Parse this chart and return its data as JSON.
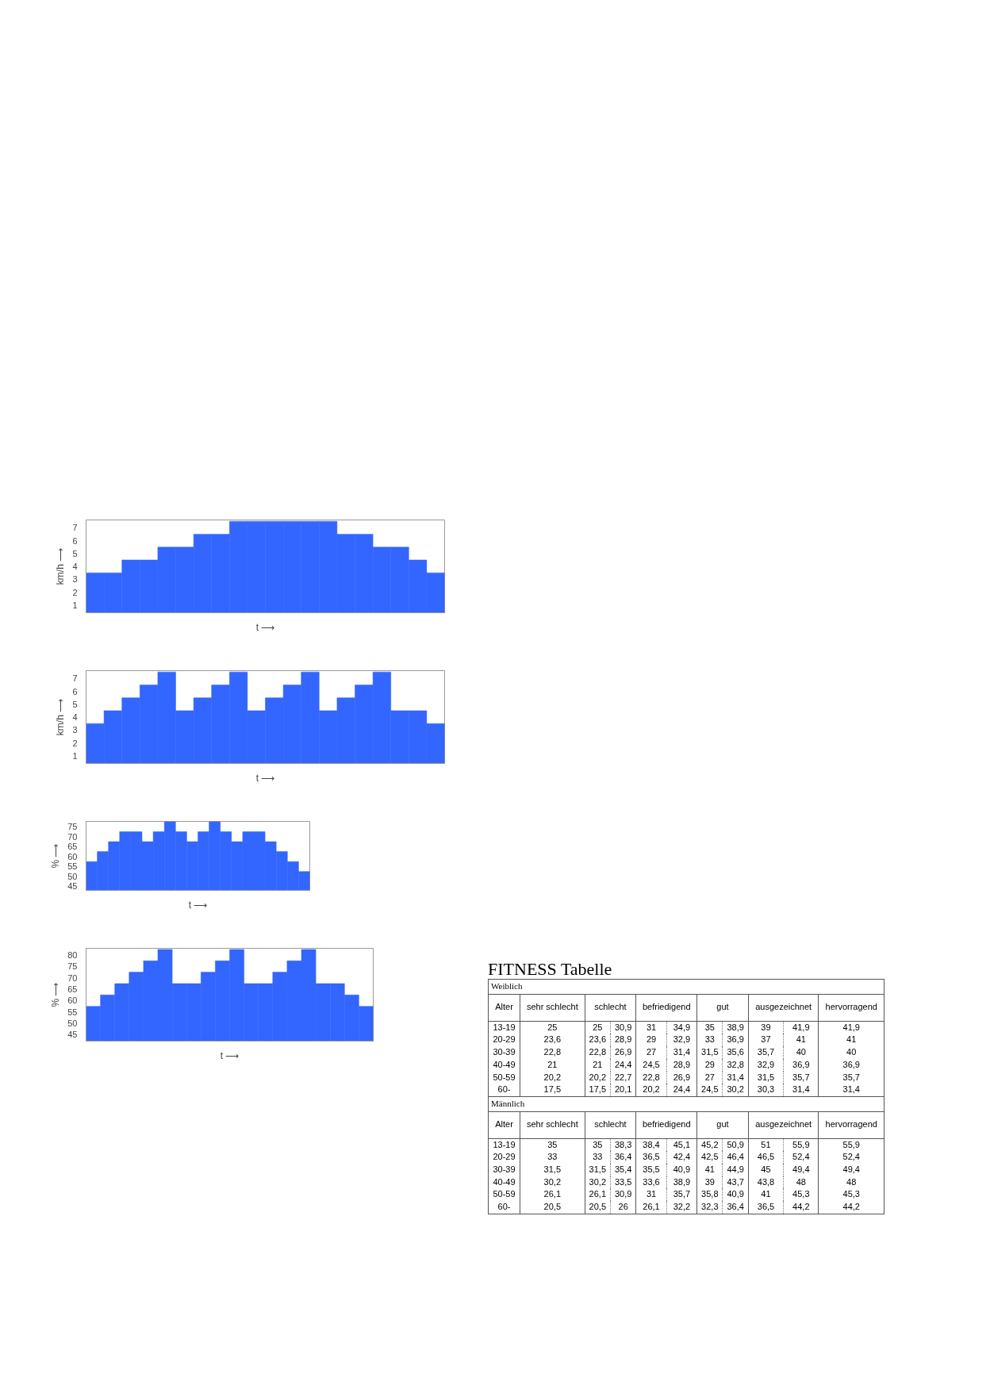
{
  "chart_data": [
    {
      "type": "bar",
      "ylabel": "km/h ⟶",
      "xlabel": "t ⟶",
      "categories": [
        null,
        null,
        null,
        null,
        null,
        null,
        null,
        null,
        null,
        null,
        null,
        null,
        null,
        null,
        null,
        null,
        null,
        null,
        null,
        null
      ],
      "values": [
        3.5,
        3.5,
        4.5,
        4.5,
        5.5,
        5.5,
        6.5,
        6.5,
        7.5,
        7.5,
        7.5,
        7.5,
        7.5,
        7.5,
        6.5,
        6.5,
        5.5,
        5.5,
        4.5,
        3.5
      ],
      "color": "#3366ff",
      "ylim": [
        0.4,
        7.6
      ],
      "yticks": [
        1,
        2,
        3,
        4,
        5,
        6,
        7
      ],
      "tick_labels": "y"
    },
    {
      "type": "bar",
      "ylabel": "km/h ⟶",
      "xlabel": "t ⟶",
      "categories": [
        null,
        null,
        null,
        null,
        null,
        null,
        null,
        null,
        null,
        null,
        null,
        null,
        null,
        null,
        null,
        null,
        null,
        null,
        null,
        null
      ],
      "values": [
        3.5,
        4.5,
        5.5,
        6.5,
        7.5,
        4.5,
        5.5,
        6.5,
        7.5,
        4.5,
        5.5,
        6.5,
        7.5,
        4.5,
        5.5,
        6.5,
        7.5,
        4.5,
        4.5,
        3.5
      ],
      "color": "#3366ff",
      "ylim": [
        0.4,
        7.6
      ],
      "yticks": [
        1,
        2,
        3,
        4,
        5,
        6,
        7
      ],
      "tick_labels": "y"
    },
    {
      "type": "bar",
      "ylabel": "% ⟶",
      "xlabel": "t ⟶",
      "categories": [
        null,
        null,
        null,
        null,
        null,
        null,
        null,
        null,
        null,
        null,
        null,
        null,
        null,
        null,
        null,
        null,
        null,
        null,
        null,
        null
      ],
      "values": [
        57.5,
        62.5,
        67.5,
        72.5,
        72.5,
        67.5,
        72.5,
        77.5,
        72.5,
        67.5,
        72.5,
        77.5,
        72.5,
        67.5,
        72.5,
        72.5,
        67.5,
        62.5,
        57.5,
        52.5
      ],
      "color": "#3366ff",
      "ylim": [
        43,
        77.7
      ],
      "yticks": [
        45,
        50,
        55,
        60,
        65,
        70,
        75
      ],
      "tick_labels": "y"
    },
    {
      "type": "bar",
      "ylabel": "% ⟶",
      "xlabel": "t ⟶",
      "categories": [
        null,
        null,
        null,
        null,
        null,
        null,
        null,
        null,
        null,
        null,
        null,
        null,
        null,
        null,
        null,
        null,
        null,
        null,
        null,
        null
      ],
      "values": [
        57.5,
        62.5,
        67.5,
        72.5,
        77.5,
        82.5,
        67.5,
        67.5,
        72.5,
        77.5,
        82.5,
        67.5,
        67.5,
        72.5,
        77.5,
        82.5,
        67.5,
        67.5,
        62.5,
        57.5
      ],
      "color": "#3366ff",
      "ylim": [
        42.2,
        83
      ],
      "yticks": [
        45,
        50,
        55,
        60,
        65,
        70,
        75,
        80
      ],
      "tick_labels": "y"
    },
    {
      "type": "other",
      "title": "FITNESS Tabelle",
      "annotations": [
        "Weiblich",
        "Alter",
        "sehr schlecht",
        "schlecht",
        "befriedigend",
        "gut",
        "ausgezeichnet",
        "hervorragend",
        "13-19",
        "25",
        "25",
        "30,9",
        "31",
        "34,9",
        "35",
        "38,9",
        "39",
        "41,9",
        "41,9",
        "20-29",
        "23,6",
        "23,6",
        "28,9",
        "29",
        "32,9",
        "33",
        "36,9",
        "37",
        "41",
        "41",
        "30-39",
        "22,8",
        "22,8",
        "26,9",
        "27",
        "31,4",
        "31,5",
        "35,6",
        "35,7",
        "40",
        "40",
        "40-49",
        "21",
        "21",
        "24,4",
        "24,5",
        "28,9",
        "29",
        "32,8",
        "32,9",
        "36,9",
        "36,9",
        "50-59",
        "20,2",
        "20,2",
        "22,7",
        "22,8",
        "26,9",
        "27",
        "31,4",
        "31,5",
        "35,7",
        "35,7",
        "60-",
        "17,5",
        "17,5",
        "20,1",
        "20,2",
        "24,4",
        "24,5",
        "30,2",
        "30,3",
        "31,4",
        "31,4",
        "Männlich",
        "Alter",
        "sehr schlecht",
        "schlecht",
        "befriedigend",
        "gut",
        "ausgezeichnet",
        "hervorragend",
        "13-19",
        "35",
        "35",
        "38,3",
        "38,4",
        "45,1",
        "45,2",
        "50,9",
        "51",
        "55,9",
        "55,9",
        "20-29",
        "33",
        "33",
        "36,4",
        "36,5",
        "42,4",
        "42,5",
        "46,4",
        "46,5",
        "52,4",
        "52,4",
        "30-39",
        "31,5",
        "31,5",
        "35,4",
        "35,5",
        "40,9",
        "41",
        "44,9",
        "45",
        "49,4",
        "49,4",
        "40-49",
        "30,2",
        "30,2",
        "33,5",
        "33,6",
        "38,9",
        "39",
        "43,7",
        "43,8",
        "48",
        "48",
        "50-59",
        "26,1",
        "26,1",
        "30,9",
        "31",
        "35,7",
        "35,8",
        "40,9",
        "41",
        "45,3",
        "45,3",
        "60-",
        "20,5",
        "20,5",
        "26",
        "26,1",
        "32,2",
        "32,3",
        "36,4",
        "36,5",
        "44,2",
        "44,2"
      ]
    }
  ]
}
